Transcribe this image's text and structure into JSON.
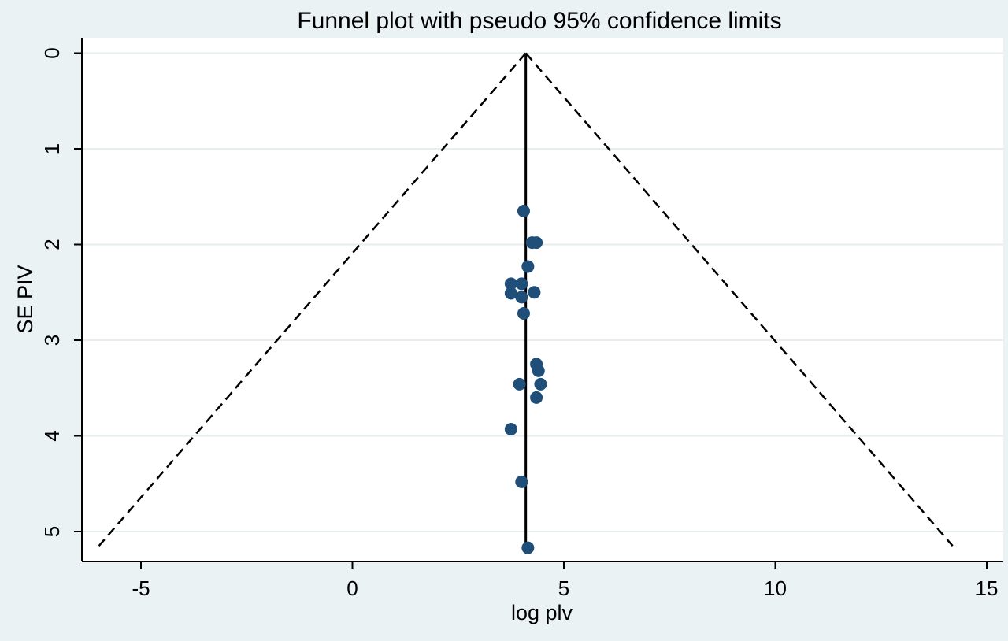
{
  "chart_data": {
    "type": "scatter",
    "title": "Funnel plot with pseudo 95% confidence limits",
    "xlabel": "log plv",
    "ylabel": "SE PIV",
    "xlim": [
      -6.5,
      15.4
    ],
    "ylim": [
      0,
      5.4
    ],
    "y_inverted": true,
    "xticks": [
      -5,
      0,
      5,
      10,
      15
    ],
    "yticks": [
      0,
      1,
      2,
      3,
      4,
      5
    ],
    "grid": "horizontal",
    "pooled_estimate": 4.1,
    "funnel_bottom_se": 5.15,
    "marker_color": "#1f4e79",
    "plot_background": "#ffffff",
    "outer_background": "#eaf2f3",
    "gridline_color": "#e6eeef",
    "points": [
      {
        "x": 4.05,
        "y": 1.65
      },
      {
        "x": 4.25,
        "y": 1.98
      },
      {
        "x": 4.35,
        "y": 1.98
      },
      {
        "x": 4.15,
        "y": 2.23
      },
      {
        "x": 3.75,
        "y": 2.41
      },
      {
        "x": 4.0,
        "y": 2.41
      },
      {
        "x": 3.75,
        "y": 2.51
      },
      {
        "x": 4.0,
        "y": 2.55
      },
      {
        "x": 4.3,
        "y": 2.5
      },
      {
        "x": 4.05,
        "y": 2.72
      },
      {
        "x": 4.35,
        "y": 3.25
      },
      {
        "x": 4.4,
        "y": 3.32
      },
      {
        "x": 3.95,
        "y": 3.46
      },
      {
        "x": 4.45,
        "y": 3.46
      },
      {
        "x": 4.35,
        "y": 3.6
      },
      {
        "x": 3.75,
        "y": 3.93
      },
      {
        "x": 4.0,
        "y": 4.48
      },
      {
        "x": 4.15,
        "y": 5.17
      }
    ]
  }
}
